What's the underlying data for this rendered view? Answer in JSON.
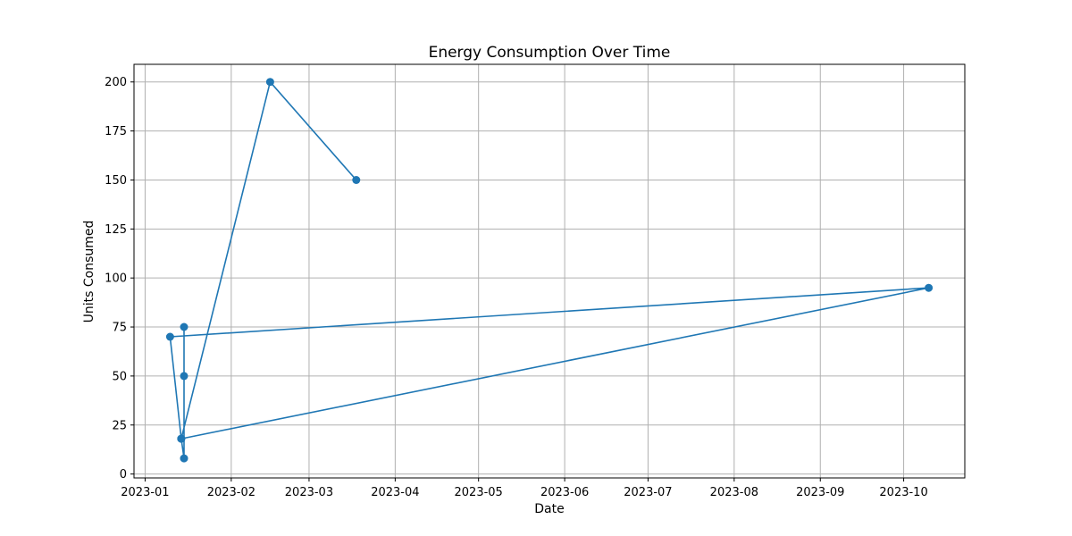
{
  "chart_data": {
    "type": "line",
    "title": "Energy Consumption Over Time",
    "xlabel": "Date",
    "ylabel": "Units Consumed",
    "x_axis_type": "date",
    "xlim": [
      "2022-12-28",
      "2023-10-23"
    ],
    "ylim": [
      -2,
      209
    ],
    "grid": true,
    "x_ticks": [
      "2023-01",
      "2023-02",
      "2023-03",
      "2023-04",
      "2023-05",
      "2023-06",
      "2023-07",
      "2023-08",
      "2023-09",
      "2023-10"
    ],
    "y_ticks": [
      0,
      25,
      50,
      75,
      100,
      125,
      150,
      175,
      200
    ],
    "series": [
      {
        "color": "#1f77b4",
        "marker": "circle",
        "points": [
          {
            "x": "2023-01-15",
            "y": 75
          },
          {
            "x": "2023-01-15",
            "y": 50
          },
          {
            "x": "2023-01-15",
            "y": 8
          },
          {
            "x": "2023-01-14",
            "y": 18
          },
          {
            "x": "2023-01-10",
            "y": 70
          },
          {
            "x": "2023-10-10",
            "y": 95
          },
          {
            "x": "2023-01-14",
            "y": 18
          },
          {
            "x": "2023-02-15",
            "y": 200
          },
          {
            "x": "2023-03-18",
            "y": 150
          }
        ]
      }
    ]
  }
}
